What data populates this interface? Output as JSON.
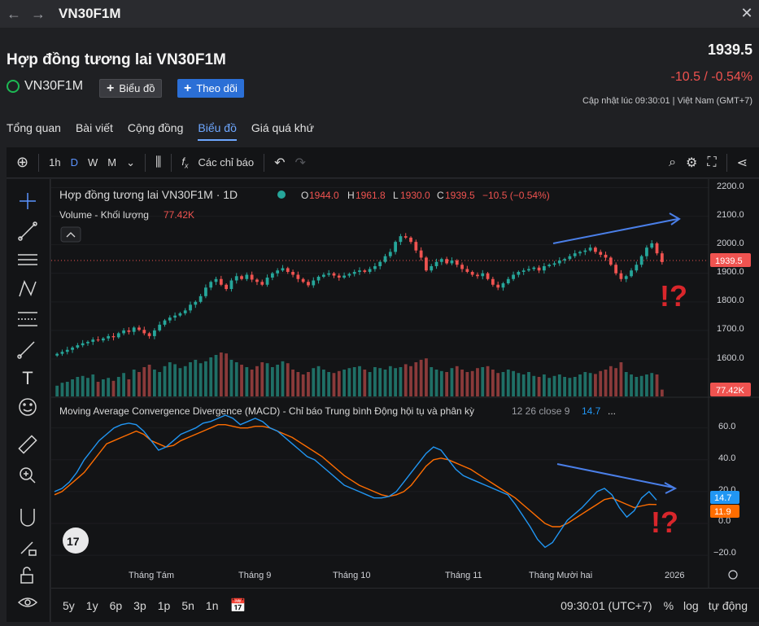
{
  "window": {
    "title": "VN30F1M"
  },
  "header": {
    "title": "Hợp đồng tương lai VN30F1M",
    "symbol": "VN30F1M",
    "add_chart_label": "Biểu đồ",
    "follow_label": "Theo dõi",
    "price": "1939.5",
    "change": "-10.5 / -0.54%",
    "updated": "Cập nhật lúc  09:30:01 | Việt Nam (GMT+7)"
  },
  "tabs": [
    {
      "label": "Tổng quan"
    },
    {
      "label": "Bài viết"
    },
    {
      "label": "Cộng đồng"
    },
    {
      "label": "Biểu đồ"
    },
    {
      "label": "Giá quá khứ"
    }
  ],
  "toolbar": {
    "interval": "1h",
    "ranges": [
      "D",
      "W",
      "M"
    ],
    "indicators_label": "Các chỉ báo"
  },
  "legend": {
    "title": "Hợp đồng tương lai VN30F1M · 1D",
    "o_label": "O",
    "o_value": "1944.0",
    "h_label": "H",
    "h_value": "1961.8",
    "l_label": "L",
    "l_value": "1930.0",
    "c_label": "C",
    "c_value": "1939.5",
    "change": "−10.5 (−0.54%)",
    "volume_label": "Volume - Khối lượng",
    "volume_value": "77.42K"
  },
  "macd_legend": {
    "title": "Moving Average Convergence Divergence (MACD) - Chỉ báo Trung bình Động hội tụ và phân kỳ",
    "params": "12 26 close 9",
    "value": "14.7",
    "more": "..."
  },
  "price_axis": [
    "2200.0",
    "2100.0",
    "2000.0",
    "1900.0",
    "1800.0",
    "1700.0",
    "1600.0"
  ],
  "price_badge": "1939.5",
  "volume_badge": "77.42K",
  "macd_axis": [
    "60.0",
    "40.0",
    "20.0",
    "0.0",
    "−20.0"
  ],
  "macd_badges": {
    "macd": "14.7",
    "signal": "11.9"
  },
  "time_axis": [
    "Tháng Tám",
    "Tháng 9",
    "Tháng 10",
    "Tháng 11",
    "Tháng Mười hai",
    "2026"
  ],
  "annotation": "!?",
  "bottom": {
    "ranges": [
      "5y",
      "1y",
      "6p",
      "3p",
      "1p",
      "5n",
      "1n"
    ],
    "time": "09:30:01 (UTC+7)",
    "pct": "%",
    "log": "log",
    "auto": "tự động"
  },
  "colors": {
    "up": "#26a69a",
    "down": "#ef5350",
    "macd": "#2196f3",
    "signal": "#ff6d00",
    "accent": "#2b6fd6"
  },
  "chart_data": {
    "type": "candlestick",
    "price_range": [
      1560,
      2230
    ],
    "closes": [
      1618,
      1625,
      1632,
      1640,
      1648,
      1655,
      1660,
      1668,
      1665,
      1672,
      1680,
      1676,
      1690,
      1700,
      1695,
      1710,
      1702,
      1690,
      1680,
      1700,
      1720,
      1735,
      1745,
      1752,
      1760,
      1770,
      1790,
      1800,
      1820,
      1850,
      1870,
      1880,
      1860,
      1845,
      1875,
      1890,
      1880,
      1895,
      1878,
      1870,
      1860,
      1885,
      1900,
      1910,
      1918,
      1905,
      1895,
      1880,
      1870,
      1858,
      1875,
      1888,
      1895,
      1900,
      1892,
      1885,
      1892,
      1898,
      1905,
      1910,
      1905,
      1915,
      1925,
      1940,
      1960,
      1975,
      2010,
      2030,
      2025,
      2010,
      1980,
      1955,
      1910,
      1925,
      1940,
      1950,
      1935,
      1945,
      1930,
      1915,
      1905,
      1895,
      1890,
      1900,
      1880,
      1860,
      1850,
      1865,
      1880,
      1895,
      1905,
      1910,
      1915,
      1920,
      1910,
      1925,
      1930,
      1935,
      1945,
      1950,
      1960,
      1970,
      1975,
      1980,
      1990,
      1975,
      1965,
      1955,
      1930,
      1900,
      1880,
      1890,
      1910,
      1930,
      1960,
      1990,
      2005,
      1970,
      1939.5
    ],
    "volume_relative": [
      0.22,
      0.28,
      0.3,
      0.35,
      0.4,
      0.42,
      0.38,
      0.45,
      0.3,
      0.35,
      0.38,
      0.32,
      0.4,
      0.48,
      0.35,
      0.55,
      0.5,
      0.6,
      0.65,
      0.55,
      0.5,
      0.62,
      0.7,
      0.66,
      0.58,
      0.62,
      0.7,
      0.75,
      0.68,
      0.72,
      0.8,
      0.85,
      0.9,
      0.88,
      0.75,
      0.7,
      0.65,
      0.6,
      0.55,
      0.62,
      0.7,
      0.68,
      0.6,
      0.65,
      0.72,
      0.68,
      0.55,
      0.5,
      0.45,
      0.5,
      0.58,
      0.62,
      0.55,
      0.5,
      0.48,
      0.52,
      0.55,
      0.58,
      0.6,
      0.62,
      0.55,
      0.5,
      0.6,
      0.58,
      0.55,
      0.62,
      0.58,
      0.6,
      0.66,
      0.62,
      0.7,
      0.75,
      0.78,
      0.6,
      0.55,
      0.52,
      0.5,
      0.58,
      0.62,
      0.55,
      0.5,
      0.52,
      0.58,
      0.6,
      0.62,
      0.55,
      0.48,
      0.5,
      0.55,
      0.52,
      0.48,
      0.45,
      0.5,
      0.42,
      0.4,
      0.45,
      0.38,
      0.42,
      0.45,
      0.4,
      0.38,
      0.4,
      0.45,
      0.5,
      0.48,
      0.46,
      0.52,
      0.55,
      0.62,
      0.58,
      0.7,
      0.5,
      0.45,
      0.4,
      0.42,
      0.45,
      0.48,
      0.45,
      0.14
    ],
    "macd": [
      20,
      22,
      26,
      32,
      40,
      46,
      52,
      56,
      60,
      62,
      63,
      62,
      58,
      52,
      46,
      48,
      52,
      56,
      58,
      60,
      63,
      64,
      66,
      68,
      66,
      62,
      64,
      66,
      64,
      60,
      58,
      54,
      50,
      46,
      42,
      40,
      36,
      32,
      28,
      24,
      22,
      20,
      18,
      16,
      16,
      17,
      20,
      26,
      32,
      38,
      44,
      48,
      46,
      40,
      34,
      30,
      28,
      26,
      24,
      22,
      20,
      18,
      12,
      5,
      -2,
      -10,
      -15,
      -12,
      -5,
      2,
      6,
      10,
      15,
      20,
      22,
      18,
      10,
      4,
      8,
      16,
      20,
      14.7
    ],
    "signal": [
      18,
      20,
      24,
      28,
      32,
      38,
      44,
      50,
      52,
      54,
      56,
      58,
      56,
      52,
      50,
      48,
      49,
      52,
      54,
      56,
      58,
      60,
      62,
      62,
      61,
      60,
      60,
      61,
      61,
      60,
      58,
      56,
      54,
      51,
      48,
      45,
      42,
      38,
      34,
      30,
      27,
      24,
      22,
      20,
      18,
      17,
      18,
      20,
      24,
      30,
      36,
      40,
      41,
      40,
      38,
      36,
      34,
      31,
      28,
      25,
      22,
      19,
      16,
      12,
      8,
      4,
      0,
      -2,
      -2,
      0,
      3,
      6,
      9,
      12,
      15,
      16,
      14,
      12,
      10,
      11,
      12,
      11.9
    ],
    "macd_range": [
      -24,
      68
    ]
  }
}
